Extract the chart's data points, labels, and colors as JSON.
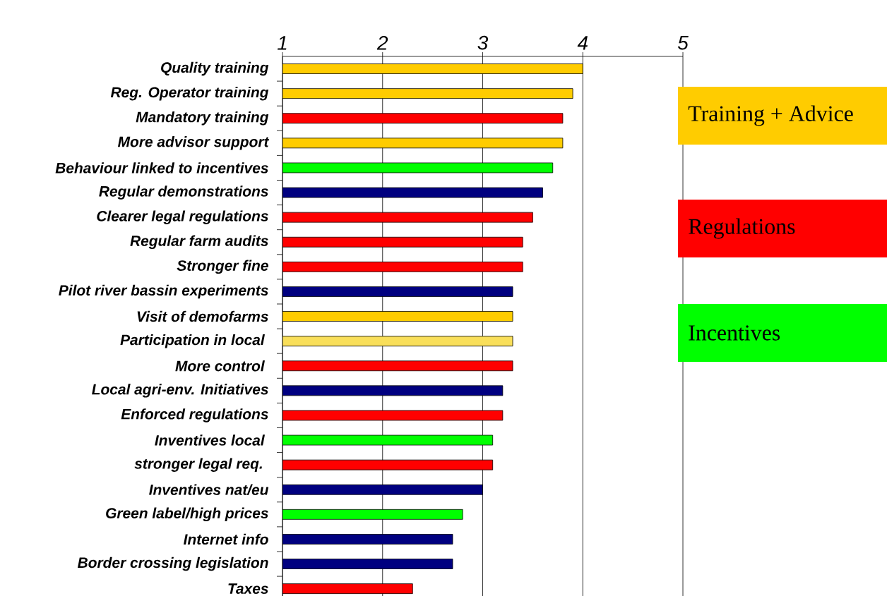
{
  "chart_data": {
    "type": "bar",
    "orientation": "horizontal",
    "categories": [
      "Quality training",
      "Reg. Operator training",
      "Mandatory training",
      "More advisor support",
      "Behaviour linked to incentives",
      "Regular demonstrations",
      "Clearer legal regulations",
      "Regular farm audits",
      "Stronger fine",
      "Pilot river bassin experiments",
      "Visit of demofarms",
      "Participation in local ",
      "More control ",
      "Local agri-env. Initiatives",
      "Enforced regulations",
      "Inventives local ",
      "stronger legal req. ",
      "Inventives nat/eu",
      "Green label/high prices",
      "Internet info",
      "Border crossing legislation",
      "Taxes"
    ],
    "series": [
      {
        "name": "Training + Advice",
        "color": "#ffcc00",
        "colors": [
          "#ffcc00",
          "#ffcc00",
          null,
          "#ffcc00",
          null,
          null,
          null,
          null,
          null,
          null,
          "#ffcc00",
          "#f9df5a",
          null,
          null,
          null,
          null,
          null,
          null,
          null,
          null,
          null,
          null
        ],
        "values": [
          4.0,
          3.9,
          null,
          3.8,
          null,
          null,
          null,
          null,
          null,
          null,
          3.3,
          3.3,
          null,
          null,
          null,
          null,
          null,
          null,
          null,
          null,
          null,
          null
        ]
      },
      {
        "name": "Regulations",
        "color": "#ff0000",
        "values": [
          null,
          null,
          3.8,
          null,
          null,
          null,
          3.5,
          3.4,
          3.4,
          null,
          null,
          null,
          3.3,
          null,
          3.2,
          null,
          3.1,
          null,
          null,
          null,
          null,
          2.3
        ]
      },
      {
        "name": "Incentives",
        "color": "#00ff00",
        "values": [
          null,
          null,
          null,
          null,
          3.7,
          null,
          null,
          null,
          null,
          null,
          null,
          null,
          null,
          null,
          null,
          3.1,
          null,
          null,
          2.8,
          null,
          null,
          null
        ]
      },
      {
        "color": "#000080",
        "values": [
          null,
          null,
          null,
          null,
          null,
          3.6,
          null,
          null,
          null,
          3.3,
          null,
          null,
          null,
          3.2,
          null,
          null,
          null,
          3.0,
          null,
          2.7,
          2.7,
          null
        ]
      }
    ],
    "xlim": [
      1,
      5
    ],
    "xticks": [
      1,
      2,
      3,
      4,
      5
    ],
    "grid": "x",
    "legend": "right"
  }
}
